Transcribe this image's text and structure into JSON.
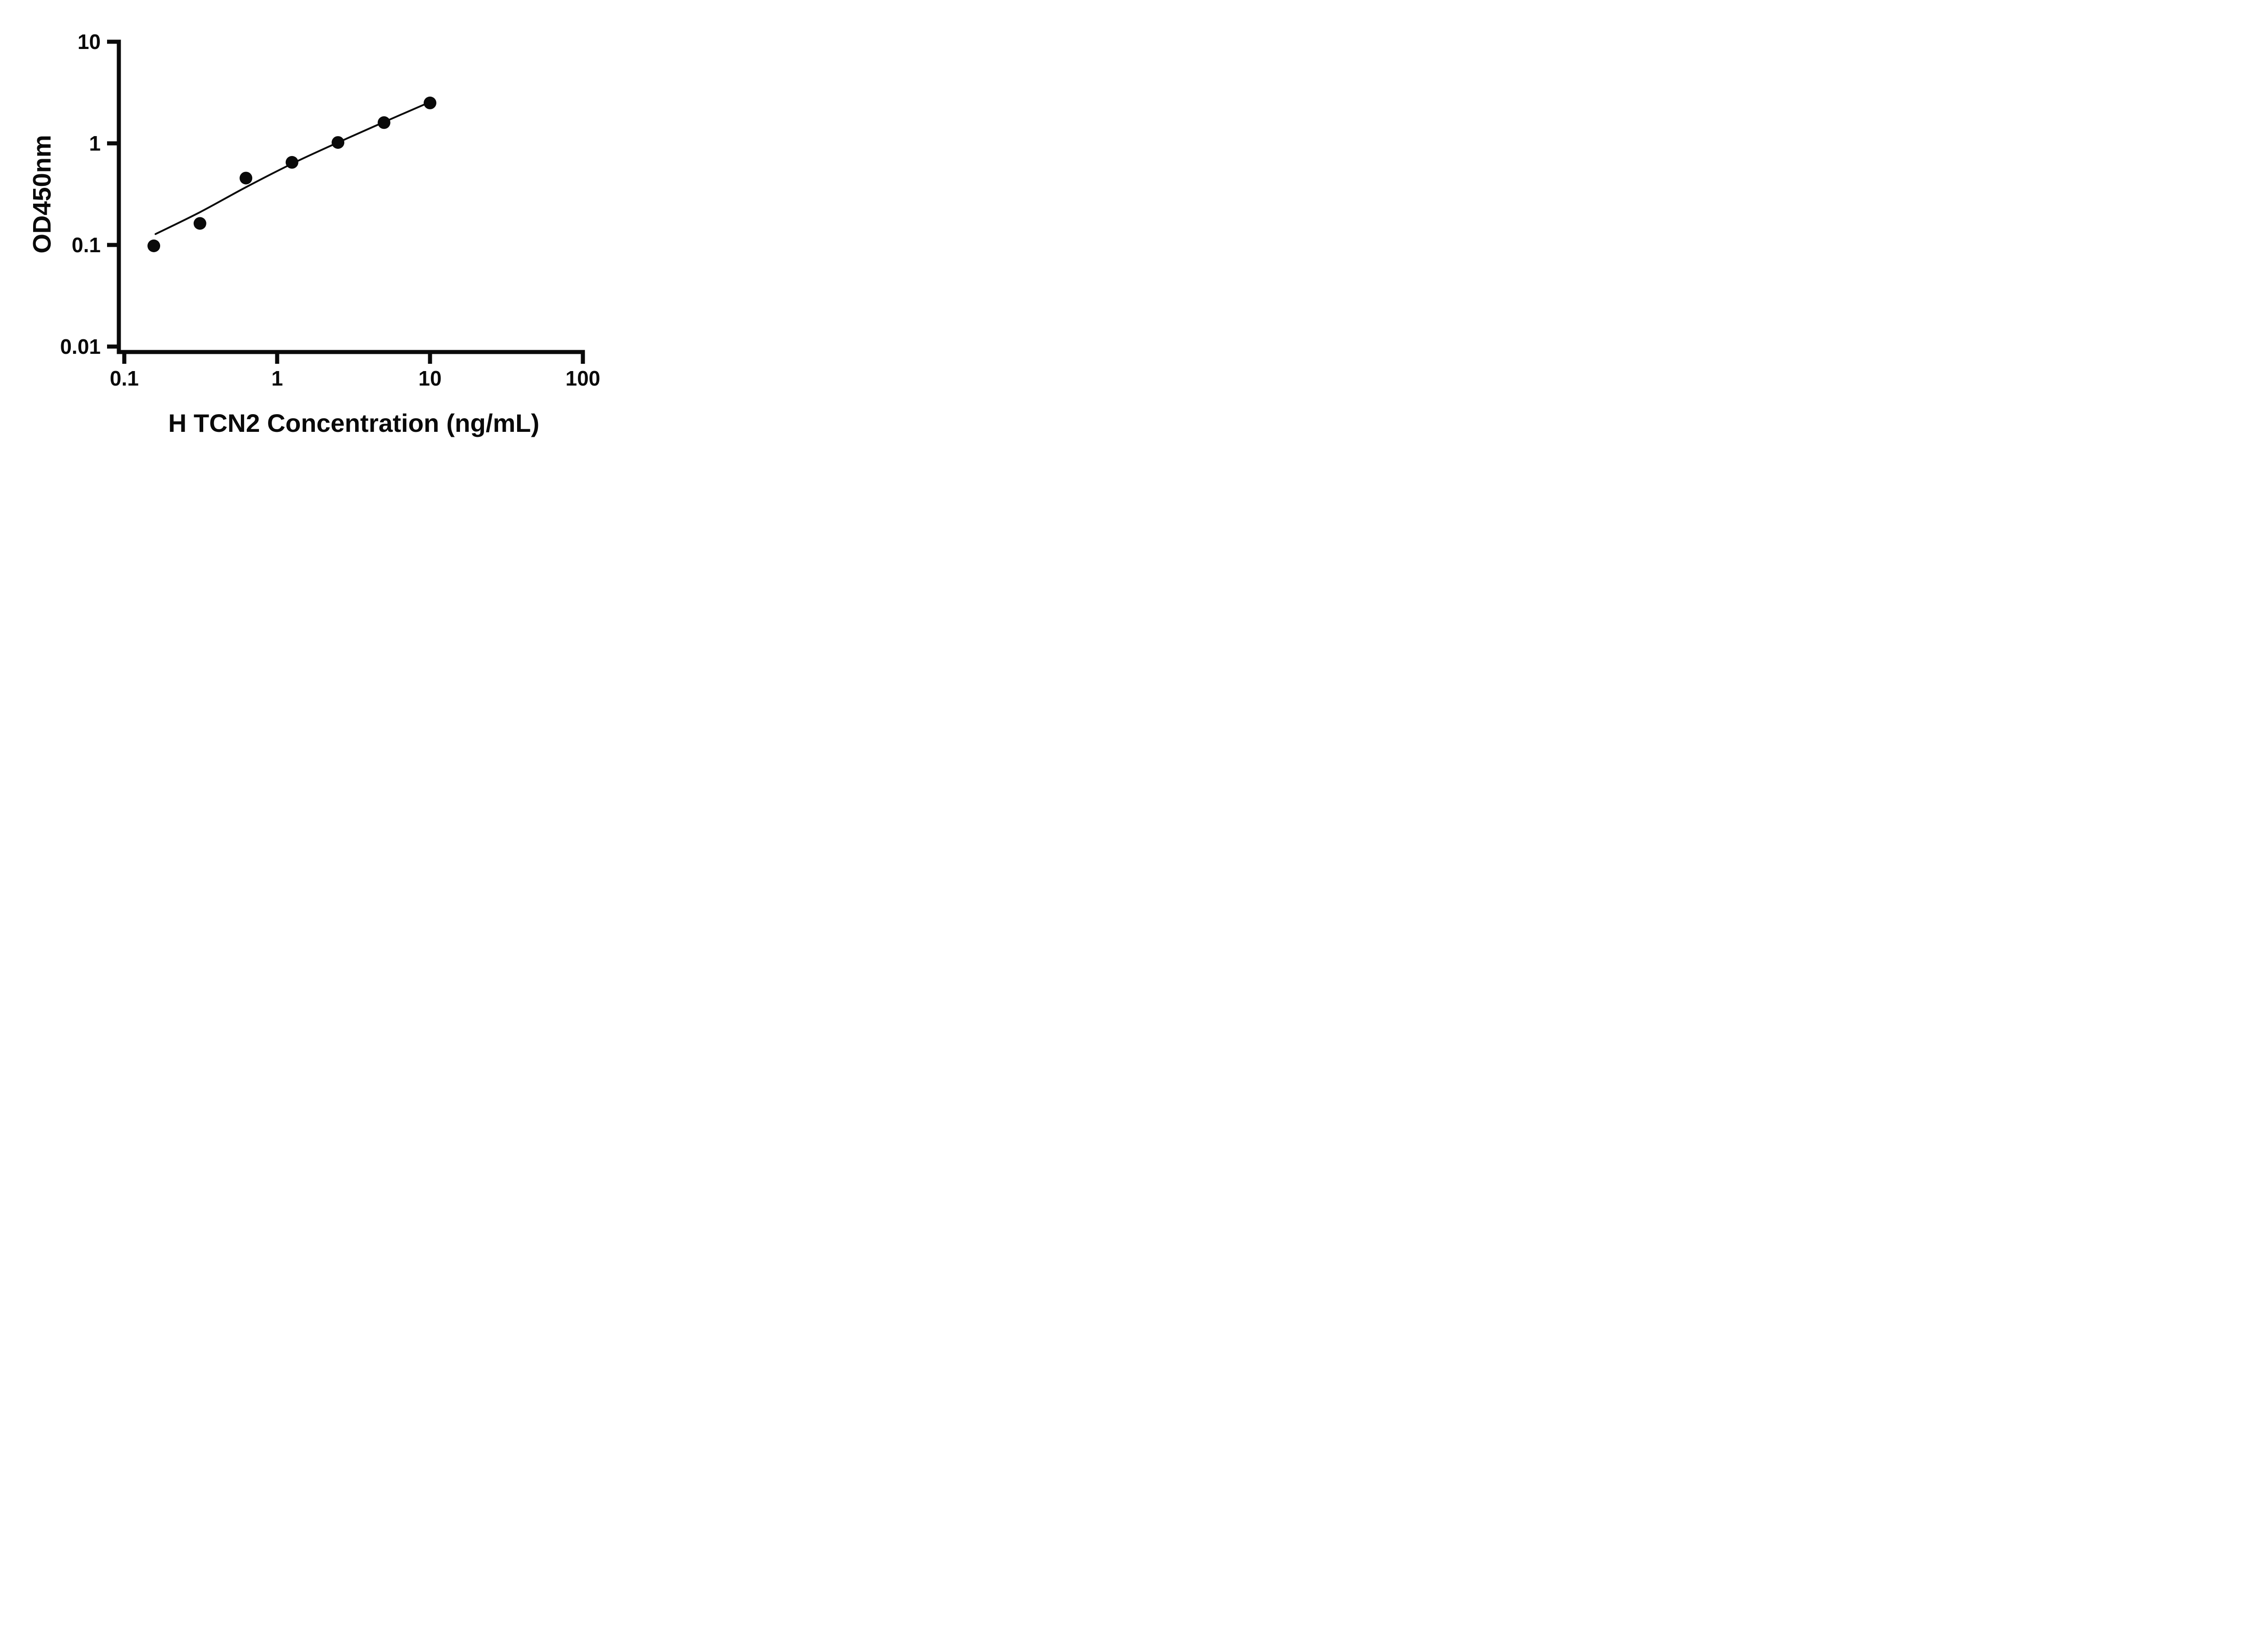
{
  "chart_data": {
    "type": "scatter",
    "title": "",
    "xlabel": "H TCN2 Concentration (ng/mL)",
    "ylabel": "OD450nm",
    "x_scale": "log",
    "y_scale": "log",
    "xlim": [
      0.1,
      100
    ],
    "ylim": [
      0.01,
      10
    ],
    "x_ticks": [
      0.1,
      1,
      10,
      100
    ],
    "x_tick_labels": [
      "0.1",
      "1",
      "10",
      "100"
    ],
    "y_ticks": [
      0.01,
      0.1,
      1,
      10
    ],
    "y_tick_labels": [
      "0.01",
      "0.1",
      "1",
      "10"
    ],
    "grid": false,
    "legend": false,
    "series": [
      {
        "name": "fit-curve",
        "type": "line",
        "color": "#0a0a0a",
        "points": [
          {
            "x": 0.16,
            "y": 0.128
          },
          {
            "x": 0.3125,
            "y": 0.21
          },
          {
            "x": 0.625,
            "y": 0.37
          },
          {
            "x": 1.25,
            "y": 0.63
          },
          {
            "x": 2.5,
            "y": 1.02
          },
          {
            "x": 5.0,
            "y": 1.62
          },
          {
            "x": 10.0,
            "y": 2.55
          }
        ]
      },
      {
        "name": "standard-points",
        "type": "scatter",
        "marker": "circle-filled",
        "color": "#0a0a0a",
        "points": [
          {
            "x": 0.156,
            "y": 0.098
          },
          {
            "x": 0.3125,
            "y": 0.163
          },
          {
            "x": 0.625,
            "y": 0.455
          },
          {
            "x": 1.25,
            "y": 0.65
          },
          {
            "x": 2.5,
            "y": 1.02
          },
          {
            "x": 5.0,
            "y": 1.6
          },
          {
            "x": 10.0,
            "y": 2.5
          }
        ]
      }
    ]
  },
  "colors": {
    "axis": "#0a0a0a",
    "background": "#ffffff",
    "point": "#0a0a0a"
  }
}
